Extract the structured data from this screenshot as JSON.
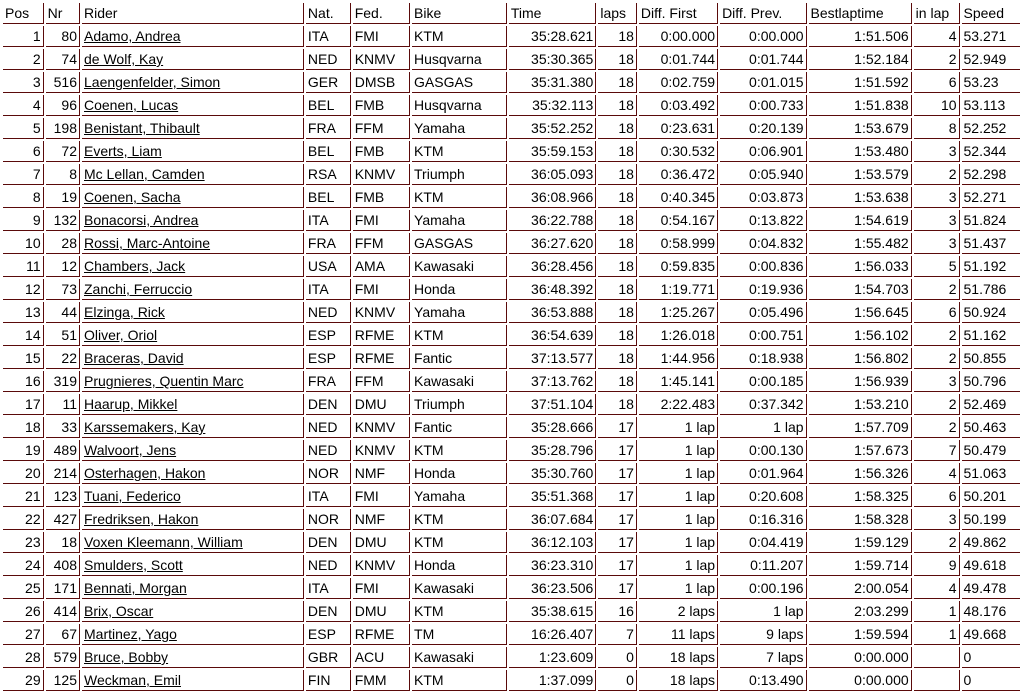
{
  "columns": [
    "Pos",
    "Nr",
    "Rider",
    "Nat.",
    "Fed.",
    "Bike",
    "Time",
    "laps",
    "Diff. First",
    "Diff. Prev.",
    "Bestlaptime",
    "in lap",
    "Speed"
  ],
  "rows": [
    [
      "1",
      "80",
      "Adamo, Andrea",
      "ITA",
      "FMI",
      "KTM",
      "35:28.621",
      "18",
      "0:00.000",
      "0:00.000",
      "1:51.506",
      "4",
      "53.271"
    ],
    [
      "2",
      "74",
      "de Wolf, Kay",
      "NED",
      "KNMV",
      "Husqvarna",
      "35:30.365",
      "18",
      "0:01.744",
      "0:01.744",
      "1:52.184",
      "2",
      "52.949"
    ],
    [
      "3",
      "516",
      "Laengenfelder, Simon",
      "GER",
      "DMSB",
      "GASGAS",
      "35:31.380",
      "18",
      "0:02.759",
      "0:01.015",
      "1:51.592",
      "6",
      "53.23"
    ],
    [
      "4",
      "96",
      "Coenen, Lucas",
      "BEL",
      "FMB",
      "Husqvarna",
      "35:32.113",
      "18",
      "0:03.492",
      "0:00.733",
      "1:51.838",
      "10",
      "53.113"
    ],
    [
      "5",
      "198",
      "Benistant, Thibault",
      "FRA",
      "FFM",
      "Yamaha",
      "35:52.252",
      "18",
      "0:23.631",
      "0:20.139",
      "1:53.679",
      "8",
      "52.252"
    ],
    [
      "6",
      "72",
      "Everts, Liam",
      "BEL",
      "FMB",
      "KTM",
      "35:59.153",
      "18",
      "0:30.532",
      "0:06.901",
      "1:53.480",
      "3",
      "52.344"
    ],
    [
      "7",
      "8",
      "Mc Lellan, Camden",
      "RSA",
      "KNMV",
      "Triumph",
      "36:05.093",
      "18",
      "0:36.472",
      "0:05.940",
      "1:53.579",
      "2",
      "52.298"
    ],
    [
      "8",
      "19",
      "Coenen, Sacha",
      "BEL",
      "FMB",
      "KTM",
      "36:08.966",
      "18",
      "0:40.345",
      "0:03.873",
      "1:53.638",
      "3",
      "52.271"
    ],
    [
      "9",
      "132",
      "Bonacorsi, Andrea",
      "ITA",
      "FMI",
      "Yamaha",
      "36:22.788",
      "18",
      "0:54.167",
      "0:13.822",
      "1:54.619",
      "3",
      "51.824"
    ],
    [
      "10",
      "28",
      "Rossi, Marc-Antoine",
      "FRA",
      "FFM",
      "GASGAS",
      "36:27.620",
      "18",
      "0:58.999",
      "0:04.832",
      "1:55.482",
      "3",
      "51.437"
    ],
    [
      "11",
      "12",
      "Chambers, Jack",
      "USA",
      "AMA",
      "Kawasaki",
      "36:28.456",
      "18",
      "0:59.835",
      "0:00.836",
      "1:56.033",
      "5",
      "51.192"
    ],
    [
      "12",
      "73",
      "Zanchi, Ferruccio",
      "ITA",
      "FMI",
      "Honda",
      "36:48.392",
      "18",
      "1:19.771",
      "0:19.936",
      "1:54.703",
      "2",
      "51.786"
    ],
    [
      "13",
      "44",
      "Elzinga, Rick",
      "NED",
      "KNMV",
      "Yamaha",
      "36:53.888",
      "18",
      "1:25.267",
      "0:05.496",
      "1:56.645",
      "6",
      "50.924"
    ],
    [
      "14",
      "51",
      "Oliver, Oriol",
      "ESP",
      "RFME",
      "KTM",
      "36:54.639",
      "18",
      "1:26.018",
      "0:00.751",
      "1:56.102",
      "2",
      "51.162"
    ],
    [
      "15",
      "22",
      "Braceras, David",
      "ESP",
      "RFME",
      "Fantic",
      "37:13.577",
      "18",
      "1:44.956",
      "0:18.938",
      "1:56.802",
      "2",
      "50.855"
    ],
    [
      "16",
      "319",
      "Prugnieres, Quentin Marc",
      "FRA",
      "FFM",
      "Kawasaki",
      "37:13.762",
      "18",
      "1:45.141",
      "0:00.185",
      "1:56.939",
      "3",
      "50.796"
    ],
    [
      "17",
      "11",
      "Haarup, Mikkel",
      "DEN",
      "DMU",
      "Triumph",
      "37:51.104",
      "18",
      "2:22.483",
      "0:37.342",
      "1:53.210",
      "2",
      "52.469"
    ],
    [
      "18",
      "33",
      "Karssemakers, Kay",
      "NED",
      "KNMV",
      "Fantic",
      "35:28.666",
      "17",
      "1 lap",
      "1 lap",
      "1:57.709",
      "2",
      "50.463"
    ],
    [
      "19",
      "489",
      "Walvoort, Jens",
      "NED",
      "KNMV",
      "KTM",
      "35:28.796",
      "17",
      "1 lap",
      "0:00.130",
      "1:57.673",
      "7",
      "50.479"
    ],
    [
      "20",
      "214",
      "Osterhagen, Hakon",
      "NOR",
      "NMF",
      "Honda",
      "35:30.760",
      "17",
      "1 lap",
      "0:01.964",
      "1:56.326",
      "4",
      "51.063"
    ],
    [
      "21",
      "123",
      "Tuani, Federico",
      "ITA",
      "FMI",
      "Yamaha",
      "35:51.368",
      "17",
      "1 lap",
      "0:20.608",
      "1:58.325",
      "6",
      "50.201"
    ],
    [
      "22",
      "427",
      "Fredriksen, Hakon",
      "NOR",
      "NMF",
      "KTM",
      "36:07.684",
      "17",
      "1 lap",
      "0:16.316",
      "1:58.328",
      "3",
      "50.199"
    ],
    [
      "23",
      "18",
      "Voxen Kleemann, William",
      "DEN",
      "DMU",
      "KTM",
      "36:12.103",
      "17",
      "1 lap",
      "0:04.419",
      "1:59.129",
      "2",
      "49.862"
    ],
    [
      "24",
      "408",
      "Smulders, Scott",
      "NED",
      "KNMV",
      "Honda",
      "36:23.310",
      "17",
      "1 lap",
      "0:11.207",
      "1:59.714",
      "9",
      "49.618"
    ],
    [
      "25",
      "171",
      "Bennati, Morgan",
      "ITA",
      "FMI",
      "Kawasaki",
      "36:23.506",
      "17",
      "1 lap",
      "0:00.196",
      "2:00.054",
      "4",
      "49.478"
    ],
    [
      "26",
      "414",
      "Brix, Oscar",
      "DEN",
      "DMU",
      "KTM",
      "35:38.615",
      "16",
      "2 laps",
      "1 lap",
      "2:03.299",
      "1",
      "48.176"
    ],
    [
      "27",
      "67",
      "Martinez, Yago",
      "ESP",
      "RFME",
      "TM",
      "16:26.407",
      "7",
      "11 laps",
      "9 laps",
      "1:59.594",
      "1",
      "49.668"
    ],
    [
      "28",
      "579",
      "Bruce, Bobby",
      "GBR",
      "ACU",
      "Kawasaki",
      "1:23.609",
      "0",
      "18 laps",
      "7 laps",
      "0:00.000",
      "",
      "0"
    ],
    [
      "29",
      "125",
      "Weckman, Emil",
      "FIN",
      "FMM",
      "KTM",
      "1:37.099",
      "0",
      "18 laps",
      "0:13.490",
      "0:00.000",
      "",
      "0"
    ]
  ]
}
